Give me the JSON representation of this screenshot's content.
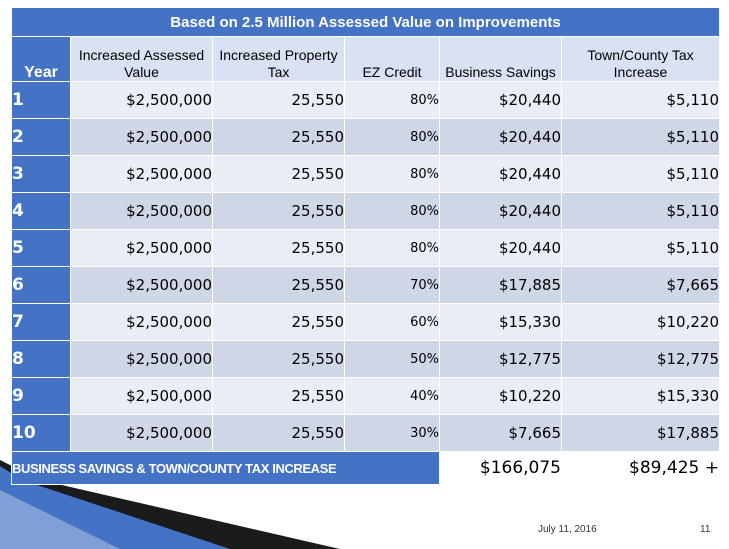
{
  "title": "Based on 2.5 Million Assessed Value on Improvements",
  "headers": {
    "year": "Year",
    "assessed": "Increased Assessed Value",
    "property_tax": "Increased Property Tax",
    "ez_credit": "EZ Credit",
    "business_savings": "Business Savings",
    "town_county": "Town/County Tax Increase"
  },
  "rows": [
    {
      "year": "1",
      "assessed": "$2,500,000",
      "property_tax": "25,550",
      "ez_credit": "80%",
      "business_savings": "$20,440",
      "town_county": "$5,110"
    },
    {
      "year": "2",
      "assessed": "$2,500,000",
      "property_tax": "25,550",
      "ez_credit": "80%",
      "business_savings": "$20,440",
      "town_county": "$5,110"
    },
    {
      "year": "3",
      "assessed": "$2,500,000",
      "property_tax": "25,550",
      "ez_credit": "80%",
      "business_savings": "$20,440",
      "town_county": "$5,110"
    },
    {
      "year": "4",
      "assessed": "$2,500,000",
      "property_tax": "25,550",
      "ez_credit": "80%",
      "business_savings": "$20,440",
      "town_county": "$5,110"
    },
    {
      "year": "5",
      "assessed": "$2,500,000",
      "property_tax": "25,550",
      "ez_credit": "80%",
      "business_savings": "$20,440",
      "town_county": "$5,110"
    },
    {
      "year": "6",
      "assessed": "$2,500,000",
      "property_tax": "25,550",
      "ez_credit": "70%",
      "business_savings": "$17,885",
      "town_county": "$7,665"
    },
    {
      "year": "7",
      "assessed": "$2,500,000",
      "property_tax": "25,550",
      "ez_credit": "60%",
      "business_savings": "$15,330",
      "town_county": "$10,220"
    },
    {
      "year": "8",
      "assessed": "$2,500,000",
      "property_tax": "25,550",
      "ez_credit": "50%",
      "business_savings": "$12,775",
      "town_county": "$12,775"
    },
    {
      "year": "9",
      "assessed": "$2,500,000",
      "property_tax": "25,550",
      "ez_credit": "40%",
      "business_savings": "$10,220",
      "town_county": "$15,330"
    },
    {
      "year": "10",
      "assessed": "$2,500,000",
      "property_tax": "25,550",
      "ez_credit": "30%",
      "business_savings": "$7,665",
      "town_county": "$17,885"
    }
  ],
  "totals": {
    "label": "BUSINESS SAVINGS & TOWN/COUNTY TAX INCREASE",
    "business_savings": "$166,075",
    "town_county": "$89,425 +"
  },
  "footer": {
    "date": "July 11, 2016",
    "page": "11"
  },
  "colors": {
    "header_blue": "#4472c4",
    "row_light": "#e9edf5",
    "row_dark": "#cfd6e6"
  }
}
